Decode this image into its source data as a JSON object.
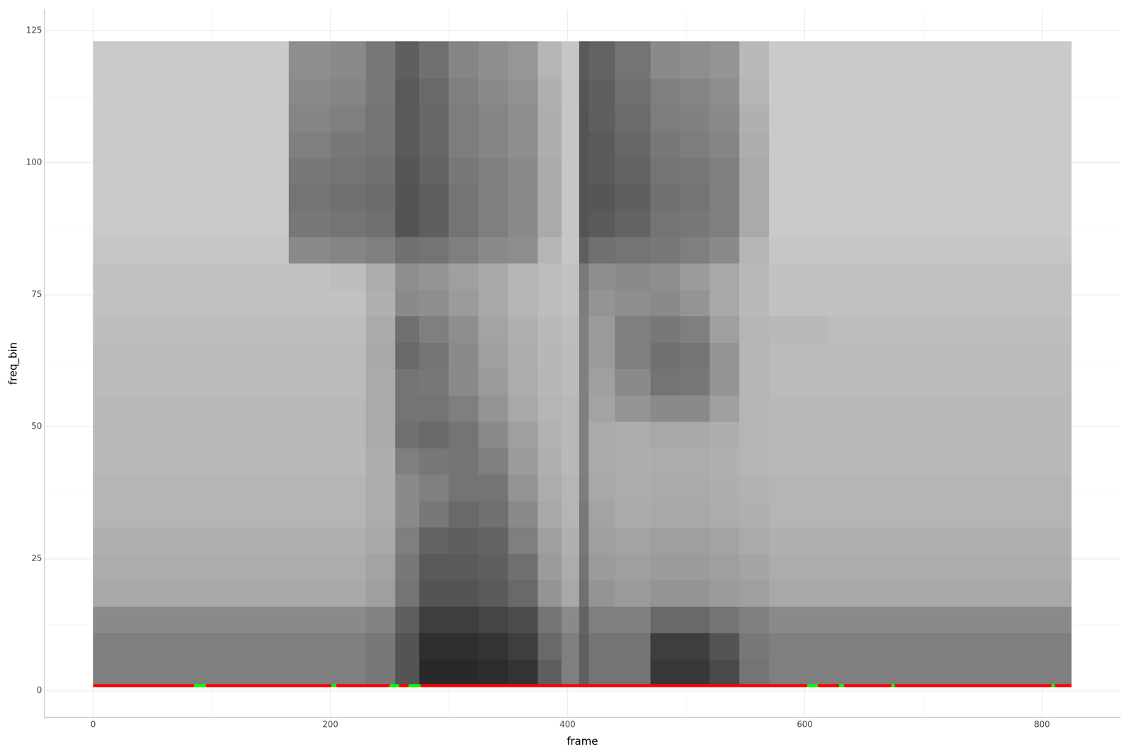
{
  "chart_data": {
    "type": "heatmap",
    "x_label": "frame",
    "y_label": "freq_bin",
    "xlim": [
      -41,
      866
    ],
    "ylim": [
      -5,
      129
    ],
    "xticks": [
      0,
      200,
      400,
      600,
      800
    ],
    "yticks": [
      0,
      25,
      50,
      75,
      100,
      125
    ],
    "grid": true,
    "frame_edges": [
      0,
      40,
      80,
      120,
      165,
      200,
      230,
      255,
      275,
      300,
      325,
      350,
      375,
      395,
      410,
      418,
      440,
      470,
      495,
      520,
      545,
      570,
      620,
      670,
      720,
      770,
      825
    ],
    "freq_bin_edges": [
      1,
      6,
      11,
      16,
      21,
      26,
      31,
      36,
      41,
      46,
      51,
      56,
      61,
      66,
      71,
      76,
      81,
      86,
      91,
      96,
      101,
      106,
      111,
      116,
      123
    ],
    "cells": [
      [
        0.55,
        0.55,
        0.55,
        0.55,
        0.55,
        0.55,
        0.58,
        0.75,
        0.95,
        0.95,
        0.93,
        0.9,
        0.7,
        0.55,
        0.7,
        0.6,
        0.6,
        0.88,
        0.88,
        0.8,
        0.6,
        0.55,
        0.55,
        0.55,
        0.55,
        0.55
      ],
      [
        0.55,
        0.55,
        0.55,
        0.55,
        0.55,
        0.55,
        0.58,
        0.75,
        0.92,
        0.92,
        0.9,
        0.85,
        0.65,
        0.55,
        0.7,
        0.6,
        0.6,
        0.85,
        0.85,
        0.75,
        0.58,
        0.55,
        0.55,
        0.55,
        0.55,
        0.55
      ],
      [
        0.5,
        0.5,
        0.5,
        0.5,
        0.5,
        0.5,
        0.53,
        0.7,
        0.85,
        0.85,
        0.82,
        0.78,
        0.6,
        0.5,
        0.68,
        0.55,
        0.55,
        0.65,
        0.65,
        0.6,
        0.55,
        0.5,
        0.5,
        0.5,
        0.5,
        0.5
      ],
      [
        0.36,
        0.36,
        0.36,
        0.36,
        0.36,
        0.36,
        0.4,
        0.6,
        0.75,
        0.75,
        0.72,
        0.65,
        0.45,
        0.36,
        0.62,
        0.45,
        0.42,
        0.45,
        0.45,
        0.42,
        0.4,
        0.36,
        0.36,
        0.36,
        0.36,
        0.36
      ],
      [
        0.34,
        0.34,
        0.34,
        0.34,
        0.34,
        0.34,
        0.38,
        0.58,
        0.72,
        0.72,
        0.7,
        0.62,
        0.42,
        0.34,
        0.6,
        0.42,
        0.4,
        0.42,
        0.42,
        0.4,
        0.37,
        0.34,
        0.34,
        0.34,
        0.34,
        0.34
      ],
      [
        0.32,
        0.32,
        0.32,
        0.32,
        0.32,
        0.32,
        0.36,
        0.55,
        0.68,
        0.7,
        0.68,
        0.55,
        0.4,
        0.32,
        0.58,
        0.4,
        0.38,
        0.4,
        0.4,
        0.38,
        0.35,
        0.32,
        0.32,
        0.32,
        0.32,
        0.32
      ],
      [
        0.3,
        0.3,
        0.3,
        0.3,
        0.3,
        0.3,
        0.34,
        0.5,
        0.58,
        0.65,
        0.62,
        0.5,
        0.36,
        0.3,
        0.58,
        0.38,
        0.35,
        0.36,
        0.36,
        0.34,
        0.32,
        0.3,
        0.3,
        0.3,
        0.3,
        0.3
      ],
      [
        0.3,
        0.3,
        0.3,
        0.3,
        0.3,
        0.3,
        0.34,
        0.5,
        0.55,
        0.6,
        0.6,
        0.45,
        0.34,
        0.3,
        0.56,
        0.36,
        0.34,
        0.35,
        0.35,
        0.33,
        0.31,
        0.3,
        0.3,
        0.3,
        0.3,
        0.3
      ],
      [
        0.28,
        0.28,
        0.28,
        0.28,
        0.28,
        0.28,
        0.33,
        0.55,
        0.58,
        0.6,
        0.55,
        0.42,
        0.32,
        0.28,
        0.55,
        0.35,
        0.33,
        0.34,
        0.34,
        0.32,
        0.3,
        0.28,
        0.28,
        0.28,
        0.28,
        0.28
      ],
      [
        0.28,
        0.28,
        0.28,
        0.28,
        0.28,
        0.28,
        0.35,
        0.62,
        0.65,
        0.6,
        0.5,
        0.4,
        0.31,
        0.28,
        0.55,
        0.35,
        0.34,
        0.36,
        0.36,
        0.33,
        0.3,
        0.28,
        0.28,
        0.28,
        0.28,
        0.28
      ],
      [
        0.28,
        0.28,
        0.28,
        0.28,
        0.28,
        0.28,
        0.35,
        0.6,
        0.6,
        0.55,
        0.45,
        0.36,
        0.3,
        0.28,
        0.55,
        0.38,
        0.45,
        0.5,
        0.5,
        0.4,
        0.3,
        0.28,
        0.28,
        0.28,
        0.28,
        0.28
      ],
      [
        0.27,
        0.27,
        0.27,
        0.27,
        0.27,
        0.27,
        0.35,
        0.6,
        0.58,
        0.5,
        0.42,
        0.34,
        0.29,
        0.27,
        0.55,
        0.4,
        0.5,
        0.6,
        0.58,
        0.45,
        0.3,
        0.27,
        0.27,
        0.27,
        0.27,
        0.27
      ],
      [
        0.27,
        0.27,
        0.27,
        0.27,
        0.27,
        0.27,
        0.36,
        0.65,
        0.6,
        0.5,
        0.4,
        0.33,
        0.29,
        0.27,
        0.55,
        0.42,
        0.55,
        0.62,
        0.6,
        0.45,
        0.3,
        0.27,
        0.27,
        0.27,
        0.27,
        0.27
      ],
      [
        0.26,
        0.26,
        0.26,
        0.26,
        0.26,
        0.26,
        0.35,
        0.62,
        0.55,
        0.48,
        0.38,
        0.32,
        0.28,
        0.26,
        0.55,
        0.42,
        0.55,
        0.58,
        0.55,
        0.4,
        0.3,
        0.28,
        0.26,
        0.26,
        0.26,
        0.26
      ],
      [
        0.24,
        0.24,
        0.24,
        0.24,
        0.24,
        0.24,
        0.32,
        0.5,
        0.48,
        0.42,
        0.36,
        0.3,
        0.26,
        0.24,
        0.56,
        0.45,
        0.48,
        0.5,
        0.45,
        0.36,
        0.28,
        0.24,
        0.24,
        0.24,
        0.24,
        0.24
      ],
      [
        0.24,
        0.24,
        0.24,
        0.24,
        0.24,
        0.26,
        0.34,
        0.48,
        0.45,
        0.4,
        0.36,
        0.3,
        0.26,
        0.24,
        0.58,
        0.48,
        0.5,
        0.48,
        0.42,
        0.36,
        0.28,
        0.24,
        0.24,
        0.24,
        0.24,
        0.24
      ],
      [
        0.22,
        0.22,
        0.22,
        0.22,
        0.5,
        0.52,
        0.55,
        0.62,
        0.6,
        0.55,
        0.5,
        0.48,
        0.3,
        0.22,
        0.7,
        0.62,
        0.6,
        0.58,
        0.55,
        0.5,
        0.3,
        0.22,
        0.22,
        0.22,
        0.22,
        0.22
      ],
      [
        0.2,
        0.2,
        0.2,
        0.2,
        0.58,
        0.6,
        0.62,
        0.75,
        0.7,
        0.6,
        0.55,
        0.5,
        0.35,
        0.22,
        0.75,
        0.72,
        0.68,
        0.6,
        0.58,
        0.55,
        0.35,
        0.2,
        0.2,
        0.2,
        0.2,
        0.2
      ],
      [
        0.2,
        0.2,
        0.2,
        0.2,
        0.6,
        0.62,
        0.64,
        0.75,
        0.7,
        0.6,
        0.55,
        0.5,
        0.35,
        0.22,
        0.75,
        0.74,
        0.7,
        0.62,
        0.6,
        0.55,
        0.35,
        0.2,
        0.2,
        0.2,
        0.2,
        0.2
      ],
      [
        0.2,
        0.2,
        0.2,
        0.2,
        0.58,
        0.6,
        0.62,
        0.74,
        0.68,
        0.58,
        0.55,
        0.5,
        0.35,
        0.22,
        0.75,
        0.72,
        0.68,
        0.6,
        0.58,
        0.55,
        0.35,
        0.2,
        0.2,
        0.2,
        0.2,
        0.2
      ],
      [
        0.2,
        0.2,
        0.2,
        0.2,
        0.55,
        0.58,
        0.6,
        0.72,
        0.66,
        0.56,
        0.52,
        0.48,
        0.33,
        0.22,
        0.75,
        0.72,
        0.66,
        0.58,
        0.56,
        0.52,
        0.33,
        0.2,
        0.2,
        0.2,
        0.2,
        0.2
      ],
      [
        0.2,
        0.2,
        0.2,
        0.2,
        0.52,
        0.55,
        0.6,
        0.72,
        0.66,
        0.56,
        0.52,
        0.48,
        0.33,
        0.22,
        0.75,
        0.7,
        0.64,
        0.56,
        0.54,
        0.5,
        0.32,
        0.2,
        0.2,
        0.2,
        0.2,
        0.2
      ],
      [
        0.2,
        0.2,
        0.2,
        0.2,
        0.5,
        0.52,
        0.58,
        0.72,
        0.65,
        0.55,
        0.5,
        0.46,
        0.32,
        0.22,
        0.74,
        0.7,
        0.62,
        0.55,
        0.52,
        0.48,
        0.3,
        0.2,
        0.2,
        0.2,
        0.2,
        0.2
      ],
      [
        0.2,
        0.2,
        0.2,
        0.2,
        0.48,
        0.5,
        0.58,
        0.7,
        0.62,
        0.52,
        0.48,
        0.44,
        0.3,
        0.22,
        0.72,
        0.68,
        0.6,
        0.5,
        0.48,
        0.45,
        0.28,
        0.2,
        0.2,
        0.2,
        0.2,
        0.2
      ]
    ],
    "segments": [
      {
        "x": [
          0,
          85
        ],
        "y": 1,
        "color": "#ff0000"
      },
      {
        "x": [
          85,
          95
        ],
        "y": 1,
        "color": "#00ff00"
      },
      {
        "x": [
          95,
          201
        ],
        "y": 1,
        "color": "#ff0000"
      },
      {
        "x": [
          201,
          205
        ],
        "y": 1,
        "color": "#00ff00"
      },
      {
        "x": [
          205,
          250
        ],
        "y": 1,
        "color": "#ff0000"
      },
      {
        "x": [
          250,
          258
        ],
        "y": 1,
        "color": "#00ff00"
      },
      {
        "x": [
          258,
          266
        ],
        "y": 1,
        "color": "#ff0000"
      },
      {
        "x": [
          266,
          276
        ],
        "y": 1,
        "color": "#00ff00"
      },
      {
        "x": [
          276,
          602
        ],
        "y": 1,
        "color": "#ff0000"
      },
      {
        "x": [
          602,
          611
        ],
        "y": 1,
        "color": "#00ff00"
      },
      {
        "x": [
          611,
          629
        ],
        "y": 1,
        "color": "#ff0000"
      },
      {
        "x": [
          629,
          633
        ],
        "y": 1,
        "color": "#00ff00"
      },
      {
        "x": [
          633,
          673
        ],
        "y": 1,
        "color": "#ff0000"
      },
      {
        "x": [
          673,
          676
        ],
        "y": 1,
        "color": "#00ff00"
      },
      {
        "x": [
          676,
          808
        ],
        "y": 1,
        "color": "#ff0000"
      },
      {
        "x": [
          808,
          811
        ],
        "y": 1,
        "color": "#00ff00"
      },
      {
        "x": [
          811,
          825
        ],
        "y": 1,
        "color": "#ff0000"
      }
    ]
  }
}
